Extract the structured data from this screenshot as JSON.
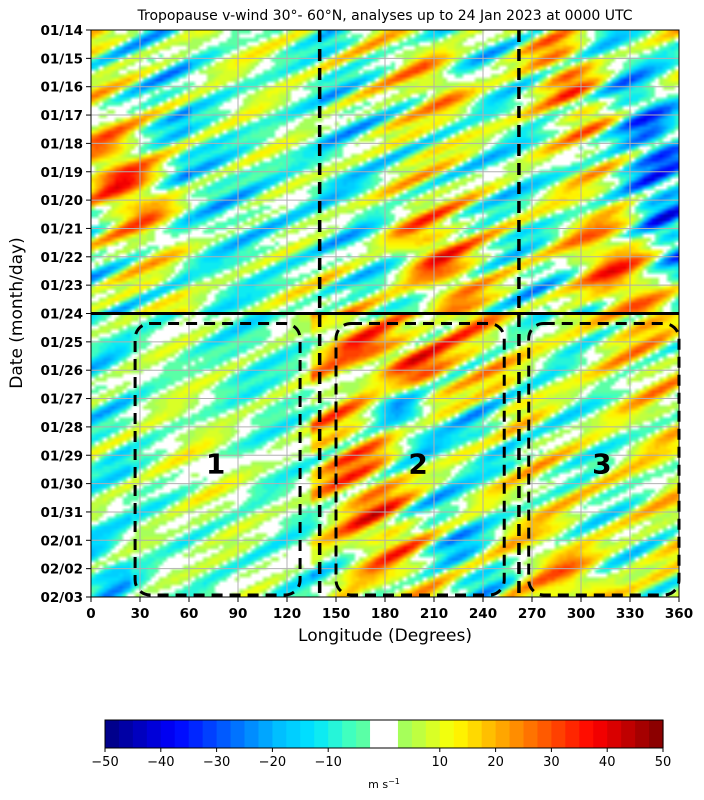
{
  "chart_data": {
    "type": "heatmap",
    "title": "Tropopause v-wind 30°- 60°N, analyses up to 24 Jan 2023 at 0000 UTC",
    "xlabel": "Longitude (Degrees)",
    "ylabel": "Date (month/day)",
    "xlim": [
      0,
      360
    ],
    "x_ticks": [
      "0",
      "30",
      "60",
      "90",
      "120",
      "150",
      "180",
      "210",
      "240",
      "270",
      "300",
      "330",
      "360"
    ],
    "y_ticks": [
      "01/14",
      "01/15",
      "01/16",
      "01/17",
      "01/18",
      "01/19",
      "01/20",
      "01/21",
      "01/22",
      "01/23",
      "01/24",
      "01/25",
      "01/26",
      "01/27",
      "01/28",
      "01/29",
      "01/30",
      "01/31",
      "02/01",
      "02/02",
      "02/03"
    ],
    "grid": true,
    "analysis_cutoff_date": "01/24",
    "vertical_lines_deg": [
      140,
      262
    ],
    "regions": [
      {
        "label": "1",
        "lon_range": [
          27,
          128
        ],
        "date_range": [
          "01/24",
          "02/03"
        ]
      },
      {
        "label": "2",
        "lon_range": [
          150,
          253
        ],
        "date_range": [
          "01/24",
          "02/03"
        ]
      },
      {
        "label": "3",
        "lon_range": [
          268,
          360
        ],
        "date_range": [
          "01/24",
          "02/03"
        ]
      }
    ],
    "colorbar": {
      "ticks": [
        "−50",
        "−40",
        "−30",
        "−20",
        "−10",
        "10",
        "20",
        "30",
        "40",
        "50"
      ],
      "range": [
        -50,
        50
      ],
      "step": 2.5,
      "white_band": [
        -2.5,
        2.5
      ],
      "unit_label": "m s",
      "unit_exponent": "−1",
      "cmap": [
        "#00007f",
        "#0000bf",
        "#0000ff",
        "#0040ff",
        "#0080ff",
        "#00bfff",
        "#00e6ff",
        "#40ffbf",
        "#80ff80",
        "#bfff40",
        "#ffff00",
        "#ffbf00",
        "#ff8000",
        "#ff4000",
        "#ff0000",
        "#bf0000",
        "#7f0000"
      ]
    }
  }
}
